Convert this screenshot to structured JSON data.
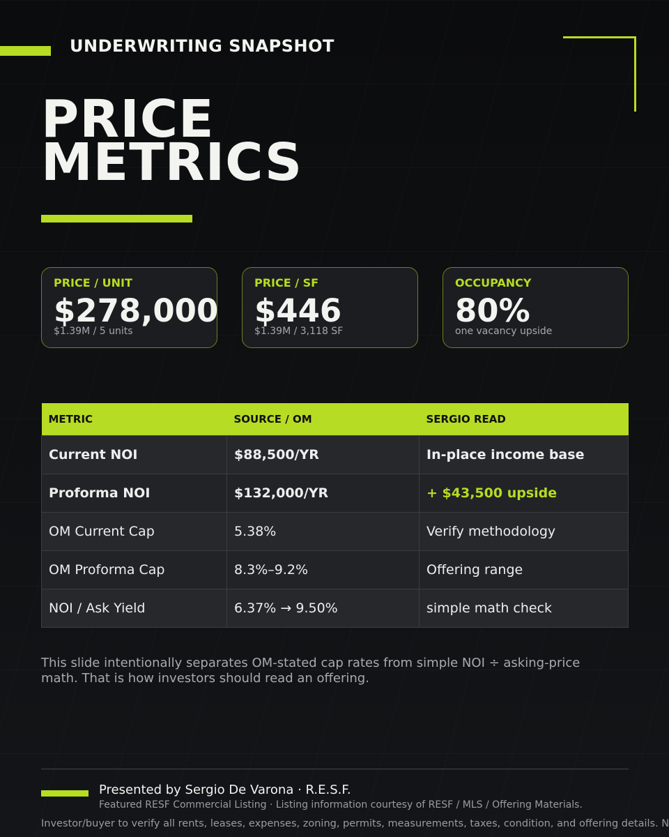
{
  "header": {
    "eyebrow": "UNDERWRITING SNAPSHOT",
    "title_lines": [
      "PRICE",
      "METRICS"
    ]
  },
  "cards": [
    {
      "label": "PRICE / UNIT",
      "value": "$278,000",
      "note": "$1.39M / 5 units"
    },
    {
      "label": "PRICE / SF",
      "value": "$446",
      "note": "$1.39M / 3,118 SF"
    },
    {
      "label": "OCCUPANCY",
      "value": "80%",
      "note": "one vacancy upside"
    }
  ],
  "table": {
    "headers": [
      "METRIC",
      "SOURCE / OM",
      "SERGIO READ"
    ],
    "rows": [
      [
        "Current NOI",
        "$88,500/YR",
        "In-place income base"
      ],
      [
        "Proforma NOI",
        "$132,000/YR",
        "+ $43,500 upside"
      ],
      [
        "OM Current Cap",
        "5.38%",
        "Verify methodology"
      ],
      [
        "OM Proforma Cap",
        "8.3%–9.2%",
        "Offering range"
      ],
      [
        "NOI / Ask Yield",
        "6.37% → 9.50%",
        "simple math check"
      ]
    ]
  },
  "note": "This slide intentionally separates OM-stated cap rates from simple NOI ÷ asking-price math. That is how investors should read an offering.",
  "footer": {
    "presenter": "Presented by Sergio De Varona · R.E.S.F.",
    "credit": "Featured RESF Commercial Listing · Listing information courtesy of RESF / MLS / Offering Materials.",
    "disclaimer": "Investor/buyer to verify all rents, leases, expenses, zoning, permits, measurements, taxes, condition, and offering details. Not"
  }
}
